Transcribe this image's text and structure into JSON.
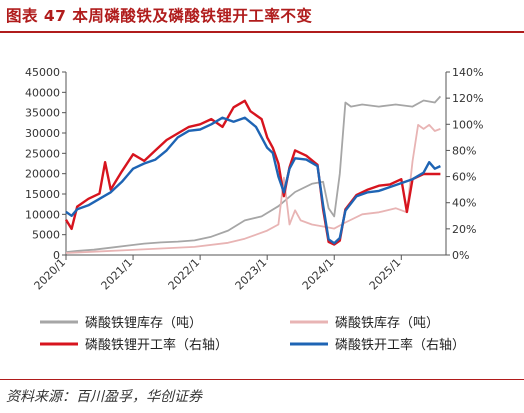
{
  "title": "图表 47   本周磷酸铁及磷酸铁锂开工率不变",
  "source": "资料来源：百川盈孚，华创证券",
  "chart_data": {
    "type": "line",
    "x_ticks": [
      "2020/1",
      "2021/1",
      "2022/1",
      "2023/1",
      "2024/1",
      "2025/1"
    ],
    "x_domain": [
      "2020/1",
      "2025/9"
    ],
    "y_left": {
      "min": 0,
      "max": 45000,
      "ticks": [
        "0",
        "5000",
        "10000",
        "15000",
        "20000",
        "25000",
        "30000",
        "35000",
        "40000",
        "45000"
      ]
    },
    "y_right": {
      "min": 0,
      "max": 1.4,
      "ticks": [
        "0%",
        "20%",
        "40%",
        "60%",
        "80%",
        "100%",
        "120%",
        "140%"
      ]
    },
    "legend_position": "bottom",
    "series": [
      {
        "name": "磷酸铁锂库存（吨）",
        "axis": "left",
        "color": "#a6a6a6",
        "points": [
          [
            "2020/1",
            700
          ],
          [
            "2020/3",
            1000
          ],
          [
            "2020/6",
            1300
          ],
          [
            "2020/9",
            1800
          ],
          [
            "2020/12",
            2300
          ],
          [
            "2021/3",
            2800
          ],
          [
            "2021/6",
            3100
          ],
          [
            "2021/9",
            3300
          ],
          [
            "2021/12",
            3600
          ],
          [
            "2022/3",
            4500
          ],
          [
            "2022/6",
            6000
          ],
          [
            "2022/9",
            8500
          ],
          [
            "2022/12",
            9500
          ],
          [
            "2023/3",
            12000
          ],
          [
            "2023/6",
            15500
          ],
          [
            "2023/9",
            17500
          ],
          [
            "2023/11",
            18000
          ],
          [
            "2023/12",
            11500
          ],
          [
            "2024/1",
            9500
          ],
          [
            "2024/2",
            20000
          ],
          [
            "2024/3",
            37500
          ],
          [
            "2024/4",
            36500
          ],
          [
            "2024/6",
            37000
          ],
          [
            "2024/9",
            36500
          ],
          [
            "2024/12",
            37000
          ],
          [
            "2025/3",
            36500
          ],
          [
            "2025/5",
            38000
          ],
          [
            "2025/7",
            37500
          ],
          [
            "2025/8",
            39000
          ]
        ]
      },
      {
        "name": "磷酸铁库存（吨）",
        "axis": "left",
        "color": "#e8b4b4",
        "points": [
          [
            "2020/1",
            500
          ],
          [
            "2020/6",
            800
          ],
          [
            "2020/12",
            1200
          ],
          [
            "2021/6",
            1600
          ],
          [
            "2021/12",
            2000
          ],
          [
            "2022/6",
            3000
          ],
          [
            "2022/9",
            4000
          ],
          [
            "2022/11",
            5000
          ],
          [
            "2023/1",
            6000
          ],
          [
            "2023/3",
            7500
          ],
          [
            "2023/4",
            19000
          ],
          [
            "2023/5",
            7500
          ],
          [
            "2023/6",
            11000
          ],
          [
            "2023/7",
            8500
          ],
          [
            "2023/9",
            7500
          ],
          [
            "2023/11",
            7000
          ],
          [
            "2024/1",
            6500
          ],
          [
            "2024/3",
            8000
          ],
          [
            "2024/6",
            10000
          ],
          [
            "2024/9",
            10500
          ],
          [
            "2024/12",
            11500
          ],
          [
            "2025/2",
            10500
          ],
          [
            "2025/3",
            23000
          ],
          [
            "2025/4",
            32000
          ],
          [
            "2025/5",
            31000
          ],
          [
            "2025/6",
            32000
          ],
          [
            "2025/7",
            30500
          ],
          [
            "2025/8",
            31000
          ]
        ]
      },
      {
        "name": "磷酸铁锂开工率（右轴）",
        "axis": "right",
        "color": "#d7141e",
        "points": [
          [
            "2020/1",
            0.27
          ],
          [
            "2020/2",
            0.2
          ],
          [
            "2020/3",
            0.37
          ],
          [
            "2020/5",
            0.43
          ],
          [
            "2020/7",
            0.47
          ],
          [
            "2020/8",
            0.71
          ],
          [
            "2020/9",
            0.5
          ],
          [
            "2020/11",
            0.64
          ],
          [
            "2021/1",
            0.77
          ],
          [
            "2021/3",
            0.72
          ],
          [
            "2021/5",
            0.8
          ],
          [
            "2021/7",
            0.88
          ],
          [
            "2021/9",
            0.93
          ],
          [
            "2021/11",
            0.98
          ],
          [
            "2022/1",
            1.0
          ],
          [
            "2022/3",
            1.04
          ],
          [
            "2022/5",
            0.98
          ],
          [
            "2022/7",
            1.13
          ],
          [
            "2022/9",
            1.18
          ],
          [
            "2022/10",
            1.1
          ],
          [
            "2022/12",
            1.04
          ],
          [
            "2023/1",
            0.9
          ],
          [
            "2023/2",
            0.82
          ],
          [
            "2023/3",
            0.7
          ],
          [
            "2023/4",
            0.45
          ],
          [
            "2023/5",
            0.67
          ],
          [
            "2023/6",
            0.8
          ],
          [
            "2023/8",
            0.76
          ],
          [
            "2023/10",
            0.69
          ],
          [
            "2023/11",
            0.35
          ],
          [
            "2023/12",
            0.1
          ],
          [
            "2024/1",
            0.08
          ],
          [
            "2024/2",
            0.11
          ],
          [
            "2024/3",
            0.35
          ],
          [
            "2024/5",
            0.46
          ],
          [
            "2024/7",
            0.5
          ],
          [
            "2024/9",
            0.53
          ],
          [
            "2024/11",
            0.54
          ],
          [
            "2025/1",
            0.58
          ],
          [
            "2025/2",
            0.33
          ],
          [
            "2025/3",
            0.58
          ],
          [
            "2025/5",
            0.62
          ],
          [
            "2025/7",
            0.62
          ],
          [
            "2025/8",
            0.62
          ]
        ]
      },
      {
        "name": "磷酸铁开工率（右轴）",
        "axis": "right",
        "color": "#1e64b4",
        "points": [
          [
            "2020/1",
            0.33
          ],
          [
            "2020/2",
            0.3
          ],
          [
            "2020/3",
            0.35
          ],
          [
            "2020/5",
            0.38
          ],
          [
            "2020/7",
            0.43
          ],
          [
            "2020/9",
            0.48
          ],
          [
            "2020/11",
            0.56
          ],
          [
            "2021/1",
            0.66
          ],
          [
            "2021/3",
            0.7
          ],
          [
            "2021/5",
            0.73
          ],
          [
            "2021/7",
            0.8
          ],
          [
            "2021/9",
            0.9
          ],
          [
            "2021/11",
            0.95
          ],
          [
            "2022/1",
            0.96
          ],
          [
            "2022/3",
            1.0
          ],
          [
            "2022/5",
            1.05
          ],
          [
            "2022/7",
            1.02
          ],
          [
            "2022/9",
            1.05
          ],
          [
            "2022/11",
            0.98
          ],
          [
            "2023/1",
            0.82
          ],
          [
            "2023/2",
            0.78
          ],
          [
            "2023/3",
            0.6
          ],
          [
            "2023/4",
            0.48
          ],
          [
            "2023/5",
            0.66
          ],
          [
            "2023/6",
            0.74
          ],
          [
            "2023/8",
            0.73
          ],
          [
            "2023/10",
            0.68
          ],
          [
            "2023/11",
            0.38
          ],
          [
            "2023/12",
            0.12
          ],
          [
            "2024/1",
            0.09
          ],
          [
            "2024/2",
            0.13
          ],
          [
            "2024/3",
            0.34
          ],
          [
            "2024/5",
            0.45
          ],
          [
            "2024/7",
            0.48
          ],
          [
            "2024/9",
            0.49
          ],
          [
            "2024/11",
            0.52
          ],
          [
            "2025/1",
            0.55
          ],
          [
            "2025/3",
            0.58
          ],
          [
            "2025/5",
            0.63
          ],
          [
            "2025/6",
            0.71
          ],
          [
            "2025/7",
            0.66
          ],
          [
            "2025/8",
            0.68
          ]
        ]
      }
    ]
  }
}
